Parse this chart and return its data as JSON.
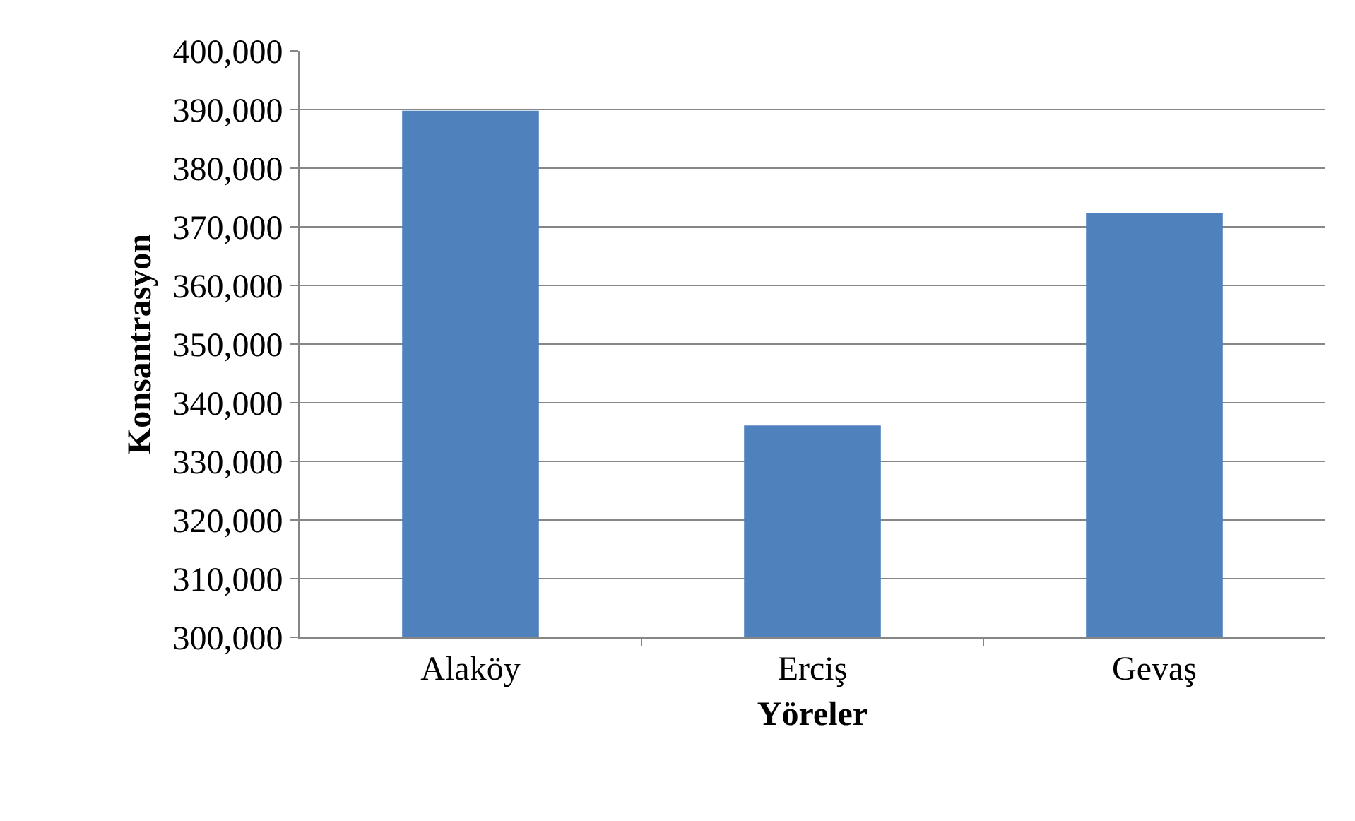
{
  "chart_data": {
    "type": "bar",
    "xlabel": "Yöreler",
    "ylabel": "Konsantrasyon",
    "categories": [
      "Alaköy",
      "Erciş",
      "Gevaş"
    ],
    "values": [
      389800,
      336100,
      372300
    ],
    "color": "#4f81bd",
    "ylim": [
      300000,
      400000
    ],
    "yticks": [
      {
        "value": 300000,
        "label": "300,000"
      },
      {
        "value": 310000,
        "label": "310,000"
      },
      {
        "value": 320000,
        "label": "320,000"
      },
      {
        "value": 330000,
        "label": "330,000"
      },
      {
        "value": 340000,
        "label": "340,000"
      },
      {
        "value": 350000,
        "label": "350,000"
      },
      {
        "value": 360000,
        "label": "360,000"
      },
      {
        "value": 370000,
        "label": "370,000"
      },
      {
        "value": 380000,
        "label": "380,000"
      },
      {
        "value": 390000,
        "label": "390,000"
      },
      {
        "value": 400000,
        "label": "400,000"
      }
    ],
    "grid": "y"
  }
}
